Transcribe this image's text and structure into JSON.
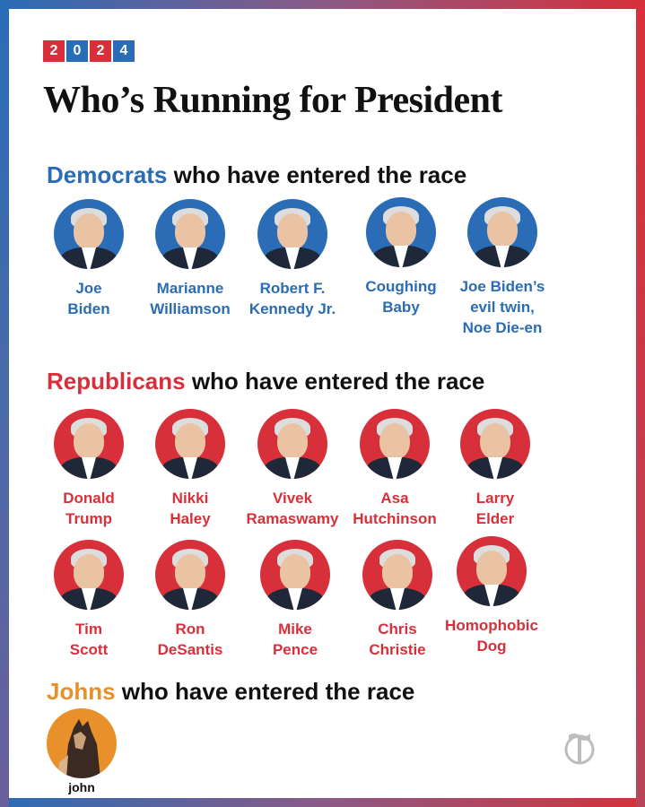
{
  "year": [
    "2",
    "0",
    "2",
    "4"
  ],
  "title": "Who’s Running for President",
  "democrats": {
    "party": "Democrats",
    "rest": " who have entered the race",
    "candidates": [
      {
        "name": "Joe\nBiden"
      },
      {
        "name": "Marianne\nWilliamson"
      },
      {
        "name": "Robert F.\nKennedy Jr."
      },
      {
        "name": "Coughing\nBaby"
      },
      {
        "name": "Joe Biden’s\nevil twin,\nNoe Die-en"
      }
    ]
  },
  "republicans": {
    "party": "Republicans",
    "rest": " who have entered the race",
    "candidates": [
      {
        "name": "Donald\nTrump"
      },
      {
        "name": "Nikki\nHaley"
      },
      {
        "name": "Vivek\nRamaswamy"
      },
      {
        "name": "Asa\nHutchinson"
      },
      {
        "name": "Larry\nElder"
      },
      {
        "name": "Tim\nScott"
      },
      {
        "name": "Ron\nDeSantis"
      },
      {
        "name": "Mike\nPence"
      },
      {
        "name": "Chris\nChristie"
      },
      {
        "name": "Homophobic\nDog"
      }
    ]
  },
  "johns": {
    "party": "Johns",
    "rest": " who have entered the race",
    "candidates": [
      {
        "name": "john"
      }
    ]
  },
  "colors": {
    "democrat_blue": "#2a6cb6",
    "republican_red": "#d8303b",
    "john_orange": "#e8902a"
  },
  "icons": {
    "logo": "nyt-t-logo-icon"
  }
}
